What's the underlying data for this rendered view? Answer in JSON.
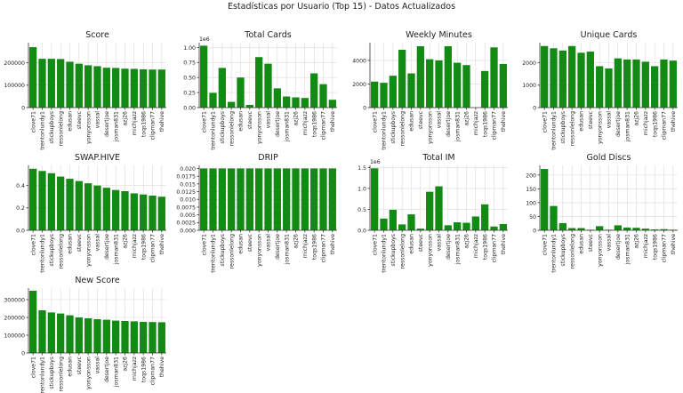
{
  "figure": {
    "suptitle": "Estadísticas por Usuario (Top 15) - Datos Actualizados",
    "bar_color": "#138a13",
    "grid_color": "#dcdcdc"
  },
  "chart_data": [
    {
      "type": "bar",
      "title": "Score",
      "categories": [
        "clove71",
        "trentonlundy1",
        "stickupboys",
        "ressonlelong",
        "edusan",
        "steevc",
        "yonyonsson",
        "vassal",
        "desertjoe",
        "josman831",
        "azj26",
        "michjazz",
        "toqs1986",
        "clipman77",
        "thehive"
      ],
      "values": [
        270000,
        218000,
        218000,
        217000,
        205000,
        196000,
        189000,
        185000,
        178000,
        177000,
        174000,
        173000,
        171000,
        170000,
        170000
      ],
      "ylim": [
        0,
        290000
      ],
      "yticks": [
        0,
        100000,
        200000
      ],
      "ytick_labels": [
        "0",
        "100000",
        "200000"
      ],
      "exponent": "",
      "grid": true
    },
    {
      "type": "bar",
      "title": "Total Cards",
      "categories": [
        "clove71",
        "trentonlundy1",
        "stickupboys",
        "ressonlelong",
        "edusan",
        "steevc",
        "yonyonsson",
        "vassal",
        "desertjoe",
        "josman831",
        "azj26",
        "michjazz",
        "toqs1986",
        "clipman77",
        "thehive"
      ],
      "values": [
        1030000,
        245000,
        660000,
        95000,
        500000,
        45000,
        840000,
        730000,
        320000,
        185000,
        170000,
        160000,
        570000,
        390000,
        130000
      ],
      "ylim": [
        0,
        1080000
      ],
      "yticks": [
        0,
        250000,
        500000,
        750000,
        1000000
      ],
      "ytick_labels": [
        "0.00",
        "0.25",
        "0.50",
        "0.75",
        "1.00"
      ],
      "exponent": "1e6",
      "grid": true
    },
    {
      "type": "bar",
      "title": "Weekly Minutes",
      "categories": [
        "clove71",
        "trentonlundy1",
        "stickupboys",
        "ressonlelong",
        "edusan",
        "steevc",
        "yonyonsson",
        "vassal",
        "desertjoe",
        "josman831",
        "azj26",
        "michjazz",
        "toqs1986",
        "clipman77",
        "thehive"
      ],
      "values": [
        2200,
        2100,
        2700,
        4900,
        2900,
        5200,
        4100,
        4000,
        5200,
        3800,
        3600,
        0,
        3100,
        5100,
        3700
      ],
      "ylim": [
        0,
        5500
      ],
      "yticks": [
        0,
        2000,
        4000
      ],
      "ytick_labels": [
        "0",
        "2000",
        "4000"
      ],
      "exponent": "",
      "grid": true
    },
    {
      "type": "bar",
      "title": "Unique Cards",
      "categories": [
        "clove71",
        "trentonlundy1",
        "stickupboys",
        "ressonlelong",
        "edusan",
        "steevc",
        "yonyonsson",
        "vassal",
        "desertjoe",
        "josman831",
        "azj26",
        "michjazz",
        "toqs1986",
        "clipman77",
        "thehive"
      ],
      "values": [
        2750,
        2650,
        2550,
        2750,
        2450,
        2500,
        1850,
        1750,
        2200,
        2150,
        2150,
        2050,
        1850,
        2150,
        2100
      ],
      "ylim": [
        0,
        2900
      ],
      "yticks": [
        0,
        1000,
        2000
      ],
      "ytick_labels": [
        "0",
        "1000",
        "2000"
      ],
      "exponent": "",
      "grid": true
    },
    {
      "type": "bar",
      "title": "SWAP.HIVE",
      "categories": [
        "clove71",
        "trentonlundy1",
        "stickupboys",
        "ressonlelong",
        "edusan",
        "steevc",
        "yonyonsson",
        "vassal",
        "desertjoe",
        "josman831",
        "azj26",
        "michjazz",
        "toqs1986",
        "clipman77",
        "thehive"
      ],
      "values": [
        0.55,
        0.53,
        0.51,
        0.48,
        0.46,
        0.44,
        0.42,
        0.4,
        0.38,
        0.36,
        0.35,
        0.33,
        0.32,
        0.31,
        0.3
      ],
      "ylim": [
        0,
        0.58
      ],
      "yticks": [
        0,
        0.2,
        0.4
      ],
      "ytick_labels": [
        "0.0",
        "0.2",
        "0.4"
      ],
      "exponent": "",
      "grid": true
    },
    {
      "type": "bar",
      "title": "DRIP",
      "categories": [
        "clove71",
        "trentonlundy1",
        "stickupboys",
        "ressonlelong",
        "edusan",
        "steevc",
        "yonyonsson",
        "vassal",
        "desertjoe",
        "josman831",
        "azj26",
        "michjazz",
        "toqs1986",
        "clipman77",
        "thehive"
      ],
      "values": [
        0.02,
        0.02,
        0.02,
        0.02,
        0.02,
        0.02,
        0.02,
        0.02,
        0.02,
        0.02,
        0.02,
        0.02,
        0.02,
        0.02,
        0.02
      ],
      "ylim": [
        0,
        0.021
      ],
      "yticks": [
        0,
        0.0025,
        0.005,
        0.0075,
        0.01,
        0.0125,
        0.015,
        0.0175,
        0.02
      ],
      "ytick_labels": [
        "0.000",
        "0.0025",
        "0.005",
        "0.0075",
        "0.010",
        "0.0125",
        "0.015",
        "0.0175",
        "0.020"
      ],
      "exponent": "",
      "grid": true
    },
    {
      "type": "bar",
      "title": "Total IM",
      "categories": [
        "clove71",
        "trentonlundy1",
        "stickupboys",
        "ressonlelong",
        "edusan",
        "steevc",
        "yonyonsson",
        "vassal",
        "desertjoe",
        "josman831",
        "azj26",
        "michjazz",
        "toqs1986",
        "clipman77",
        "thehive"
      ],
      "values": [
        1480000,
        280000,
        490000,
        140000,
        380000,
        40000,
        920000,
        1050000,
        120000,
        190000,
        180000,
        330000,
        620000,
        90000,
        150000
      ],
      "ylim": [
        0,
        1550000
      ],
      "yticks": [
        0,
        500000,
        1000000,
        1500000
      ],
      "ytick_labels": [
        "0.0",
        "0.5",
        "1.0",
        "1.5"
      ],
      "exponent": "1e6",
      "grid": true
    },
    {
      "type": "bar",
      "title": "Gold Discs",
      "categories": [
        "clove71",
        "trentonlundy1",
        "stickupboys",
        "ressonlelong",
        "edusan",
        "steevc",
        "yonyonsson",
        "vassal",
        "desertjoe",
        "josman831",
        "azj26",
        "michjazz",
        "toqs1986",
        "clipman77",
        "thehive"
      ],
      "values": [
        222,
        88,
        26,
        8,
        8,
        2,
        15,
        2,
        18,
        10,
        9,
        6,
        3,
        4,
        2
      ],
      "ylim": [
        0,
        235
      ],
      "yticks": [
        0,
        50,
        100,
        150,
        200
      ],
      "ytick_labels": [
        "0",
        "50",
        "100",
        "150",
        "200"
      ],
      "exponent": "",
      "grid": true
    },
    {
      "type": "bar",
      "title": "New Score",
      "categories": [
        "clove71",
        "trentonlundy1",
        "stickupboys",
        "ressonlelong",
        "edusan",
        "steevc",
        "yonyonsson",
        "vassal",
        "desertjoe",
        "josman831",
        "azj26",
        "michjazz",
        "toqs1986",
        "clipman77",
        "thehive"
      ],
      "values": [
        350000,
        240000,
        228000,
        222000,
        212000,
        200000,
        195000,
        190000,
        187000,
        182000,
        180000,
        178000,
        175000,
        174000,
        173000
      ],
      "ylim": [
        0,
        365000
      ],
      "yticks": [
        0,
        100000,
        200000,
        300000
      ],
      "ytick_labels": [
        "0",
        "100000",
        "200000",
        "300000"
      ],
      "exponent": "",
      "grid": true
    }
  ]
}
